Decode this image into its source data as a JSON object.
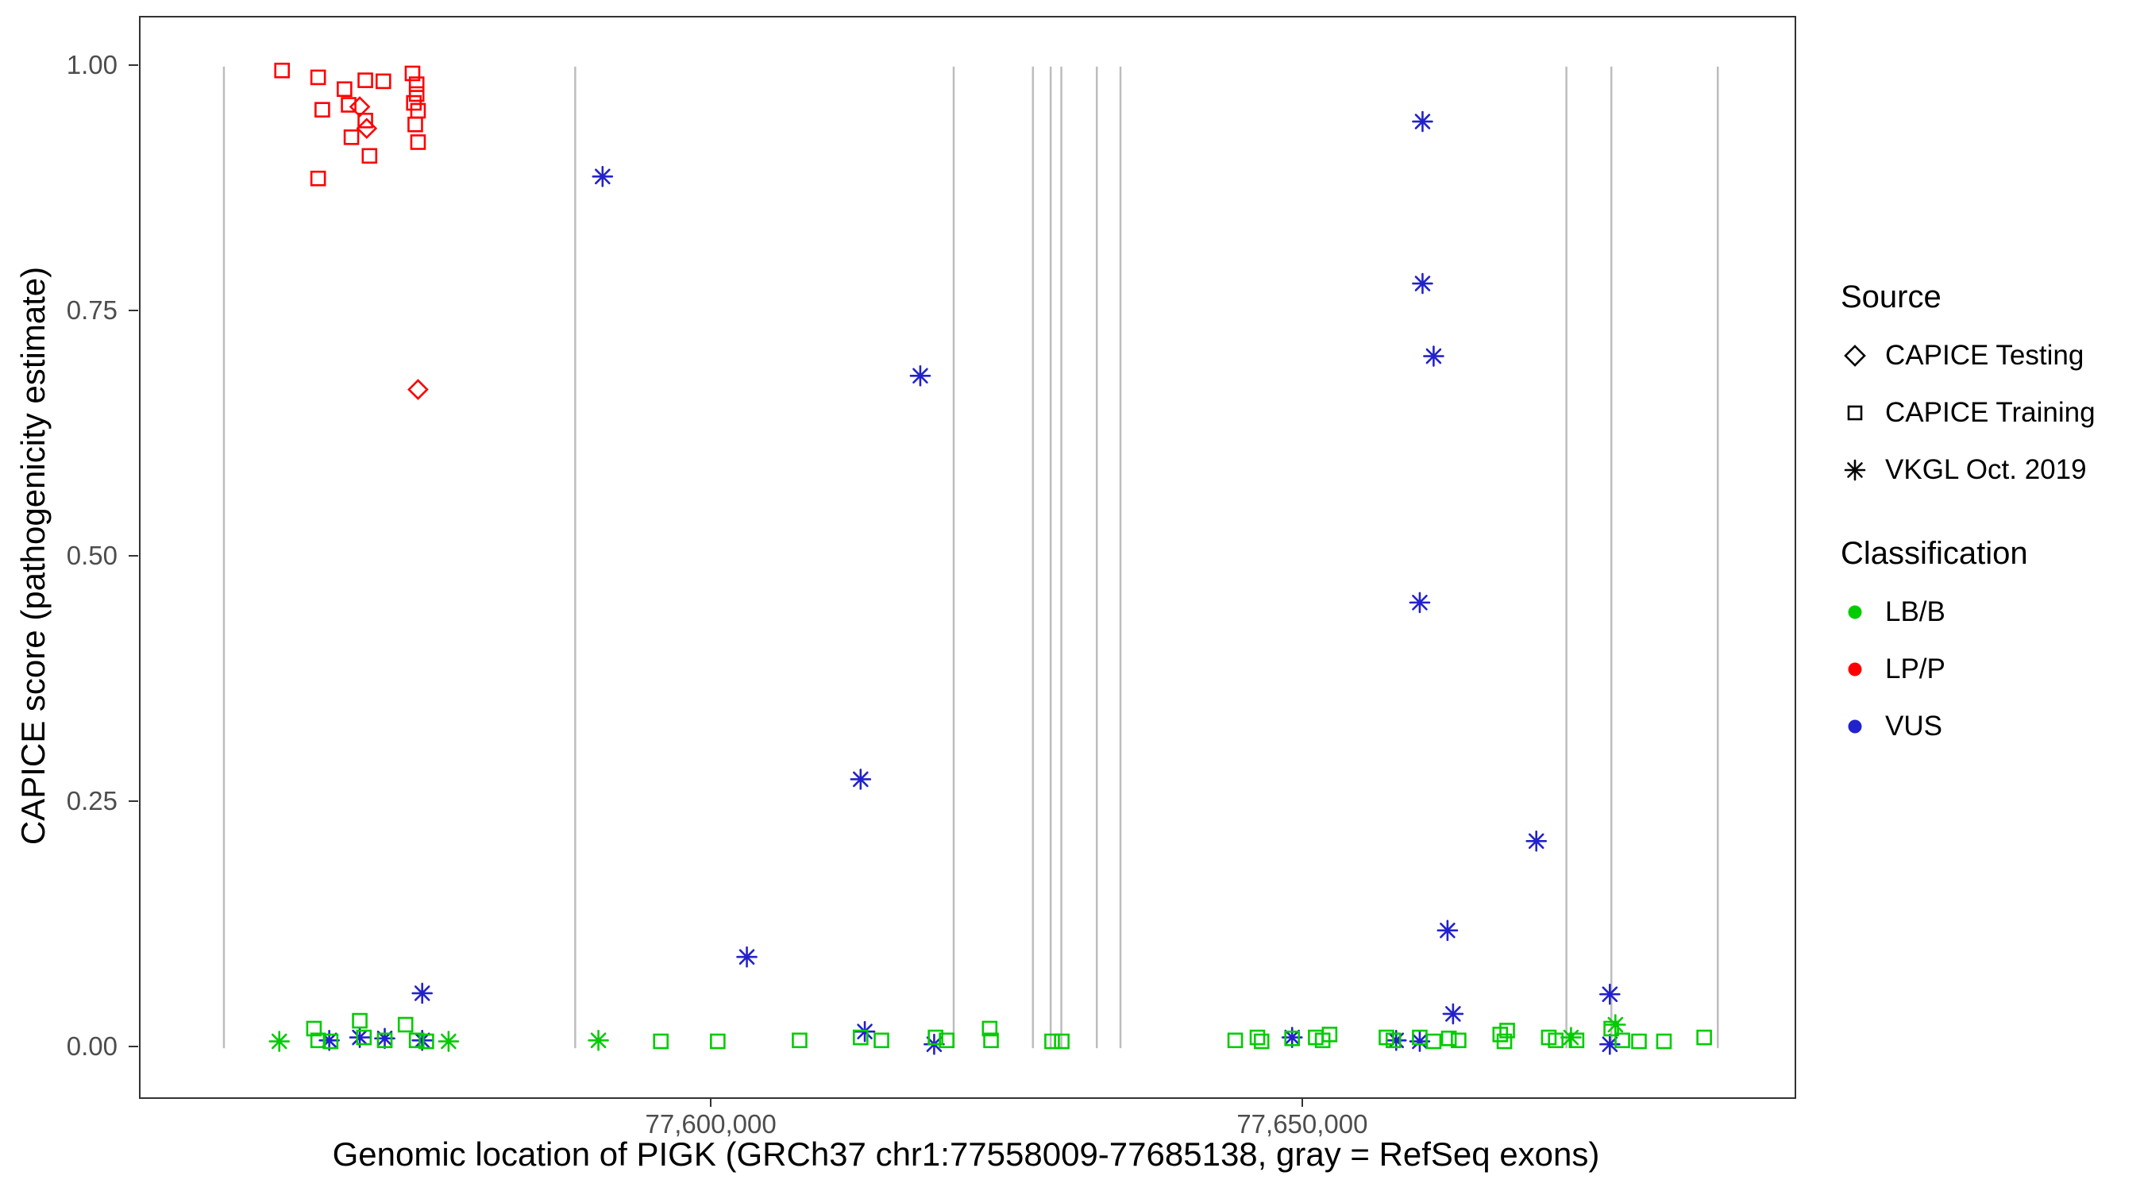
{
  "chart_data": {
    "type": "scatter",
    "title": "",
    "xlabel": "Genomic location of PIGK (GRCh37 chr1:77558009-77685138, gray = RefSeq exons)",
    "ylabel": "CAPICE score (pathogenicity estimate)",
    "xlim": [
      77551653,
      77691494
    ],
    "ylim": [
      -0.05,
      1.05
    ],
    "grid": false,
    "xticks": [
      {
        "value": 77600000,
        "label": "77,600,000"
      },
      {
        "value": 77650000,
        "label": "77,650,000"
      }
    ],
    "yticks": [
      {
        "value": 0.0,
        "label": "0.00"
      },
      {
        "value": 0.25,
        "label": "0.25"
      },
      {
        "value": 0.5,
        "label": "0.50"
      },
      {
        "value": 0.75,
        "label": "0.75"
      },
      {
        "value": 1.0,
        "label": "1.00"
      }
    ],
    "exon_color": "#BDBDBD",
    "exon_positions_x": [
      77558700,
      77588400,
      77620400,
      77627100,
      77628600,
      77629500,
      77632500,
      77634500,
      77672200,
      77676000,
      77685000
    ],
    "series_colors": {
      "LB/B": "#00CC00",
      "LP/P": "#FF0000",
      "VUS": "#2222CC"
    },
    "shape_by_source": {
      "testing": "diamond",
      "training": "square",
      "vkgl": "asterisk"
    },
    "points": [
      {
        "x": 77563617,
        "y": 0.996,
        "s": "training",
        "c": "LP/P"
      },
      {
        "x": 77566667,
        "y": 0.989,
        "s": "training",
        "c": "LP/P"
      },
      {
        "x": 77567019,
        "y": 0.956,
        "s": "training",
        "c": "LP/P"
      },
      {
        "x": 77568896,
        "y": 0.977,
        "s": "training",
        "c": "LP/P"
      },
      {
        "x": 77569483,
        "y": 0.928,
        "s": "training",
        "c": "LP/P"
      },
      {
        "x": 77566667,
        "y": 0.886,
        "s": "training",
        "c": "LP/P"
      },
      {
        "x": 77569248,
        "y": 0.961,
        "s": "training",
        "c": "LP/P"
      },
      {
        "x": 77570656,
        "y": 0.986,
        "s": "training",
        "c": "LP/P"
      },
      {
        "x": 77570656,
        "y": 0.945,
        "s": "training",
        "c": "LP/P"
      },
      {
        "x": 77571008,
        "y": 0.909,
        "s": "training",
        "c": "LP/P"
      },
      {
        "x": 77572181,
        "y": 0.985,
        "s": "training",
        "c": "LP/P"
      },
      {
        "x": 77574644,
        "y": 0.993,
        "s": "training",
        "c": "LP/P"
      },
      {
        "x": 77574996,
        "y": 0.982,
        "s": "training",
        "c": "LP/P"
      },
      {
        "x": 77574996,
        "y": 0.972,
        "s": "training",
        "c": "LP/P"
      },
      {
        "x": 77574761,
        "y": 0.963,
        "s": "training",
        "c": "LP/P"
      },
      {
        "x": 77575113,
        "y": 0.955,
        "s": "training",
        "c": "LP/P"
      },
      {
        "x": 77574878,
        "y": 0.941,
        "s": "training",
        "c": "LP/P"
      },
      {
        "x": 77575113,
        "y": 0.923,
        "s": "training",
        "c": "LP/P"
      },
      {
        "x": 77570186,
        "y": 0.959,
        "s": "testing",
        "c": "LP/P"
      },
      {
        "x": 77570773,
        "y": 0.937,
        "s": "testing",
        "c": "LP/P"
      },
      {
        "x": 77575113,
        "y": 0.671,
        "s": "testing",
        "c": "LP/P"
      },
      {
        "x": 77590714,
        "y": 0.888,
        "s": "vkgl",
        "c": "VUS"
      },
      {
        "x": 77602913,
        "y": 0.093,
        "s": "vkgl",
        "c": "VUS"
      },
      {
        "x": 77612532,
        "y": 0.274,
        "s": "vkgl",
        "c": "VUS"
      },
      {
        "x": 77612884,
        "y": 0.017,
        "s": "vkgl",
        "c": "VUS"
      },
      {
        "x": 77617575,
        "y": 0.685,
        "s": "vkgl",
        "c": "VUS"
      },
      {
        "x": 77618748,
        "y": 0.004,
        "s": "vkgl",
        "c": "VUS"
      },
      {
        "x": 77660038,
        "y": 0.944,
        "s": "vkgl",
        "c": "VUS"
      },
      {
        "x": 77660038,
        "y": 0.779,
        "s": "vkgl",
        "c": "VUS"
      },
      {
        "x": 77660976,
        "y": 0.705,
        "s": "vkgl",
        "c": "VUS"
      },
      {
        "x": 77659803,
        "y": 0.454,
        "s": "vkgl",
        "c": "VUS"
      },
      {
        "x": 77662149,
        "y": 0.12,
        "s": "vkgl",
        "c": "VUS"
      },
      {
        "x": 77662618,
        "y": 0.035,
        "s": "vkgl",
        "c": "VUS"
      },
      {
        "x": 77669657,
        "y": 0.211,
        "s": "vkgl",
        "c": "VUS"
      },
      {
        "x": 77675874,
        "y": 0.055,
        "s": "vkgl",
        "c": "VUS"
      },
      {
        "x": 77575465,
        "y": 0.056,
        "s": "vkgl",
        "c": "VUS"
      },
      {
        "x": 77567606,
        "y": 0.008,
        "s": "vkgl",
        "c": "VUS"
      },
      {
        "x": 77570186,
        "y": 0.011,
        "s": "vkgl",
        "c": "VUS"
      },
      {
        "x": 77572298,
        "y": 0.01,
        "s": "vkgl",
        "c": "VUS"
      },
      {
        "x": 77575465,
        "y": 0.008,
        "s": "vkgl",
        "c": "VUS"
      },
      {
        "x": 77649012,
        "y": 0.011,
        "s": "vkgl",
        "c": "VUS"
      },
      {
        "x": 77657810,
        "y": 0.008,
        "s": "vkgl",
        "c": "VUS"
      },
      {
        "x": 77659803,
        "y": 0.007,
        "s": "vkgl",
        "c": "VUS"
      },
      {
        "x": 77675874,
        "y": 0.004,
        "s": "vkgl",
        "c": "VUS"
      },
      {
        "x": 77563383,
        "y": 0.007,
        "s": "vkgl",
        "c": "LB/B"
      },
      {
        "x": 77577694,
        "y": 0.007,
        "s": "vkgl",
        "c": "LB/B"
      },
      {
        "x": 77590362,
        "y": 0.008,
        "s": "vkgl",
        "c": "LB/B"
      },
      {
        "x": 77672589,
        "y": 0.011,
        "s": "vkgl",
        "c": "LB/B"
      },
      {
        "x": 77676343,
        "y": 0.024,
        "s": "vkgl",
        "c": "LB/B"
      },
      {
        "x": 77566315,
        "y": 0.02,
        "s": "training",
        "c": "LB/B"
      },
      {
        "x": 77566667,
        "y": 0.008,
        "s": "training",
        "c": "LB/B"
      },
      {
        "x": 77567723,
        "y": 0.007,
        "s": "training",
        "c": "LB/B"
      },
      {
        "x": 77570186,
        "y": 0.028,
        "s": "training",
        "c": "LB/B"
      },
      {
        "x": 77570538,
        "y": 0.011,
        "s": "training",
        "c": "LB/B"
      },
      {
        "x": 77572298,
        "y": 0.008,
        "s": "training",
        "c": "LB/B"
      },
      {
        "x": 77574057,
        "y": 0.024,
        "s": "training",
        "c": "LB/B"
      },
      {
        "x": 77574996,
        "y": 0.008,
        "s": "training",
        "c": "LB/B"
      },
      {
        "x": 77575817,
        "y": 0.007,
        "s": "training",
        "c": "LB/B"
      },
      {
        "x": 77595641,
        "y": 0.007,
        "s": "training",
        "c": "LB/B"
      },
      {
        "x": 77600450,
        "y": 0.007,
        "s": "training",
        "c": "LB/B"
      },
      {
        "x": 77607371,
        "y": 0.008,
        "s": "training",
        "c": "LB/B"
      },
      {
        "x": 77612532,
        "y": 0.011,
        "s": "training",
        "c": "LB/B"
      },
      {
        "x": 77614291,
        "y": 0.008,
        "s": "training",
        "c": "LB/B"
      },
      {
        "x": 77618866,
        "y": 0.011,
        "s": "training",
        "c": "LB/B"
      },
      {
        "x": 77619804,
        "y": 0.008,
        "s": "training",
        "c": "LB/B"
      },
      {
        "x": 77623440,
        "y": 0.02,
        "s": "training",
        "c": "LB/B"
      },
      {
        "x": 77623557,
        "y": 0.008,
        "s": "training",
        "c": "LB/B"
      },
      {
        "x": 77628719,
        "y": 0.007,
        "s": "training",
        "c": "LB/B"
      },
      {
        "x": 77629540,
        "y": 0.007,
        "s": "training",
        "c": "LB/B"
      },
      {
        "x": 77644203,
        "y": 0.008,
        "s": "training",
        "c": "LB/B"
      },
      {
        "x": 77646080,
        "y": 0.011,
        "s": "training",
        "c": "LB/B"
      },
      {
        "x": 77646432,
        "y": 0.007,
        "s": "training",
        "c": "LB/B"
      },
      {
        "x": 77649012,
        "y": 0.01,
        "s": "training",
        "c": "LB/B"
      },
      {
        "x": 77651006,
        "y": 0.011,
        "s": "training",
        "c": "LB/B"
      },
      {
        "x": 77651592,
        "y": 0.008,
        "s": "training",
        "c": "LB/B"
      },
      {
        "x": 77652179,
        "y": 0.014,
        "s": "training",
        "c": "LB/B"
      },
      {
        "x": 77656988,
        "y": 0.011,
        "s": "training",
        "c": "LB/B"
      },
      {
        "x": 77657575,
        "y": 0.008,
        "s": "training",
        "c": "LB/B"
      },
      {
        "x": 77659803,
        "y": 0.011,
        "s": "training",
        "c": "LB/B"
      },
      {
        "x": 77660976,
        "y": 0.007,
        "s": "training",
        "c": "LB/B"
      },
      {
        "x": 77662266,
        "y": 0.01,
        "s": "training",
        "c": "LB/B"
      },
      {
        "x": 77663087,
        "y": 0.008,
        "s": "training",
        "c": "LB/B"
      },
      {
        "x": 77666607,
        "y": 0.014,
        "s": "training",
        "c": "LB/B"
      },
      {
        "x": 77666959,
        "y": 0.007,
        "s": "training",
        "c": "LB/B"
      },
      {
        "x": 77667194,
        "y": 0.018,
        "s": "training",
        "c": "LB/B"
      },
      {
        "x": 77670712,
        "y": 0.011,
        "s": "training",
        "c": "LB/B"
      },
      {
        "x": 77671299,
        "y": 0.008,
        "s": "training",
        "c": "LB/B"
      },
      {
        "x": 77673058,
        "y": 0.008,
        "s": "training",
        "c": "LB/B"
      },
      {
        "x": 77675991,
        "y": 0.02,
        "s": "training",
        "c": "LB/B"
      },
      {
        "x": 77676929,
        "y": 0.008,
        "s": "training",
        "c": "LB/B"
      },
      {
        "x": 77678336,
        "y": 0.007,
        "s": "training",
        "c": "LB/B"
      },
      {
        "x": 77680448,
        "y": 0.007,
        "s": "training",
        "c": "LB/B"
      },
      {
        "x": 77683849,
        "y": 0.011,
        "s": "training",
        "c": "LB/B"
      }
    ]
  },
  "legend": {
    "source": {
      "title": "Source",
      "items": [
        {
          "label": "CAPICE Testing",
          "shape": "diamond"
        },
        {
          "label": "CAPICE Training",
          "shape": "square"
        },
        {
          "label": "VKGL Oct. 2019",
          "shape": "asterisk"
        }
      ]
    },
    "classification": {
      "title": "Classification",
      "items": [
        {
          "label": "LB/B",
          "color": "#00CC00"
        },
        {
          "label": "LP/P",
          "color": "#FF0000"
        },
        {
          "label": "VUS",
          "color": "#2222CC"
        }
      ]
    }
  }
}
